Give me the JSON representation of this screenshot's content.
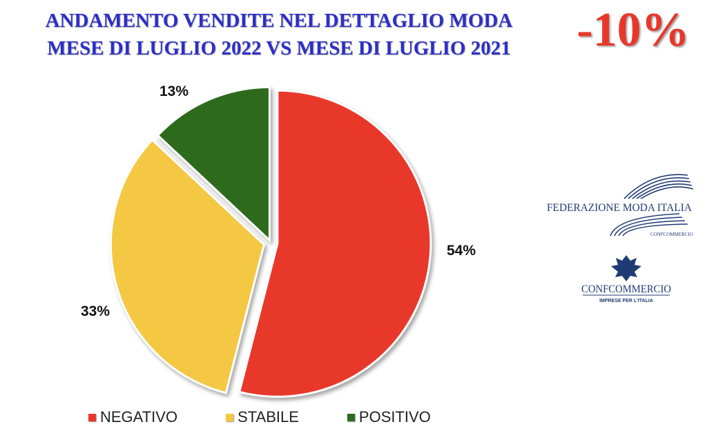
{
  "header": {
    "title_line1": "ANDAMENTO VENDITE NEL DETTAGLIO MODA",
    "title_line2": "MESE DI LUGLIO 2022 VS MESE DI LUGLIO 2021",
    "headline_value": "-10%"
  },
  "colors": {
    "title": "#2c2fc9",
    "headline": "#e8372a",
    "negativo": "#e8372a",
    "stabile": "#f4c842",
    "positivo": "#2e6b1e",
    "logo": "#1f3b73"
  },
  "chart_data": {
    "type": "pie",
    "categories": [
      "NEGATIVO",
      "STABILE",
      "POSITIVO"
    ],
    "values": [
      54,
      33,
      13
    ],
    "data_labels": [
      "54%",
      "33%",
      "13%"
    ],
    "legend": "bottom"
  },
  "logos": {
    "fmi_text": "FEDERAZIONE MODA ITALIA",
    "fmi_sub": "CONFCOMMERCIO",
    "conf_text": "CONFCOMMERCIO",
    "conf_sub": "IMPRESE PER L'ITALIA"
  }
}
